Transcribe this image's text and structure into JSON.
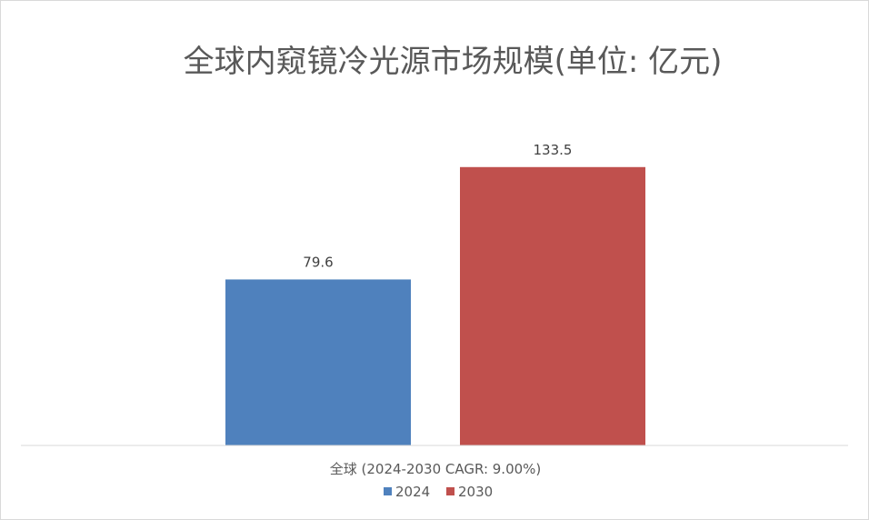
{
  "chart_data": {
    "type": "bar",
    "title": "全球内窥镜冷光源市场规模(单位: 亿元)",
    "categories": [
      "全球 (2024-2030 CAGR: 9.00%)"
    ],
    "series": [
      {
        "name": "2024",
        "values": [
          79.6
        ],
        "color": "#4f81bd"
      },
      {
        "name": "2030",
        "values": [
          133.5
        ],
        "color": "#c0504d"
      }
    ],
    "data_labels": [
      "79.6",
      "133.5"
    ],
    "ylim": [
      0,
      160
    ],
    "grid": false,
    "legend": "bottom"
  }
}
